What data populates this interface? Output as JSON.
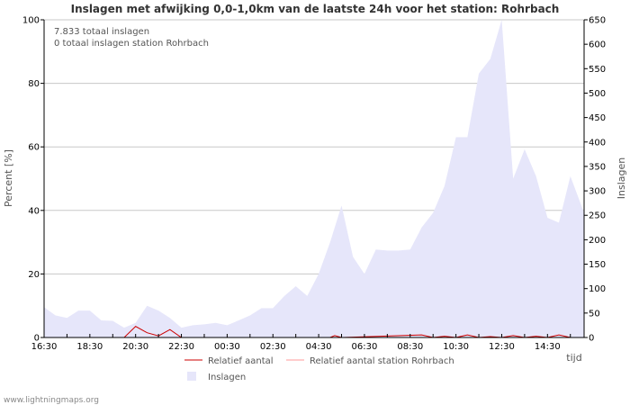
{
  "chart_data": {
    "type": "area",
    "title": "Inslagen met afwijking 0,0-1,0km van de laatste 24h voor het station: Rohrbach",
    "annotations": [
      "7.833 totaal inslagen",
      "0 totaal inslagen station Rohrbach"
    ],
    "xlabel": "tijd",
    "ylabel_left": "Percent   [%]",
    "ylabel_right": "Inslagen",
    "x_tick_labels": [
      "16:30",
      "18:30",
      "20:30",
      "22:30",
      "00:30",
      "02:30",
      "04:30",
      "06:30",
      "08:30",
      "10:30",
      "12:30",
      "14:30"
    ],
    "left_axis": {
      "min": 0,
      "max": 100,
      "ticks": [
        0,
        20,
        40,
        60,
        80,
        100
      ]
    },
    "right_axis": {
      "min": 0,
      "max": 650,
      "ticks": [
        0,
        50,
        100,
        150,
        200,
        250,
        300,
        350,
        400,
        450,
        500,
        550,
        600,
        650
      ]
    },
    "x_range_hours": [
      0,
      23.6
    ],
    "series": [
      {
        "name": "Inslagen",
        "axis": "right",
        "color": "#e6e6fa",
        "x": [
          0,
          0.5,
          1,
          1.5,
          2,
          2.5,
          3,
          3.5,
          4,
          4.5,
          5,
          5.5,
          6,
          6.5,
          7,
          7.5,
          8,
          8.5,
          9,
          9.5,
          10,
          10.5,
          11,
          11.5,
          12,
          12.5,
          13,
          13.5,
          14,
          14.5,
          15,
          15.5,
          16,
          16.5,
          17,
          17.5,
          18,
          18.5,
          19,
          19.5,
          20,
          20.5,
          21,
          21.5,
          22,
          22.5,
          23,
          23.6
        ],
        "values": [
          62,
          45,
          40,
          55,
          55,
          35,
          34,
          20,
          30,
          65,
          55,
          40,
          20,
          25,
          27,
          30,
          25,
          35,
          45,
          60,
          60,
          85,
          105,
          85,
          130,
          195,
          270,
          165,
          130,
          180,
          178,
          178,
          180,
          225,
          255,
          310,
          410,
          410,
          540,
          570,
          650,
          325,
          385,
          330,
          245,
          235,
          330,
          255
        ]
      },
      {
        "name": "Relatief aantal",
        "axis": "left",
        "color": "#cc0000",
        "x": [
          0,
          3.5,
          4,
          4.5,
          5,
          5.5,
          6,
          6.5,
          12.5,
          12.7,
          13,
          16.5,
          17,
          17.5,
          18,
          18.5,
          19,
          19.5,
          20,
          20.5,
          21,
          21.5,
          22,
          22.5,
          23,
          23.6
        ],
        "values": [
          0,
          0,
          3.5,
          1.5,
          0.5,
          2.5,
          0,
          0,
          0,
          0.6,
          0,
          0.8,
          0,
          0.4,
          0,
          0.8,
          0,
          0.3,
          0,
          0.6,
          0,
          0.4,
          0,
          0.8,
          0,
          0
        ]
      },
      {
        "name": "Relatief aantal station Rohrbach",
        "axis": "left",
        "color": "#ff9999",
        "x": [
          0,
          23.6
        ],
        "values": [
          0,
          0
        ]
      }
    ],
    "legend": {
      "position": "bottom",
      "items": [
        {
          "label": "Relatief aantal",
          "kind": "line",
          "color": "#cc0000"
        },
        {
          "label": "Relatief aantal station Rohrbach",
          "kind": "line",
          "color": "#ff9999"
        },
        {
          "label": "Inslagen",
          "kind": "box",
          "color": "#e6e6fa"
        }
      ]
    },
    "grid": true,
    "footer": "www.lightningmaps.org"
  }
}
